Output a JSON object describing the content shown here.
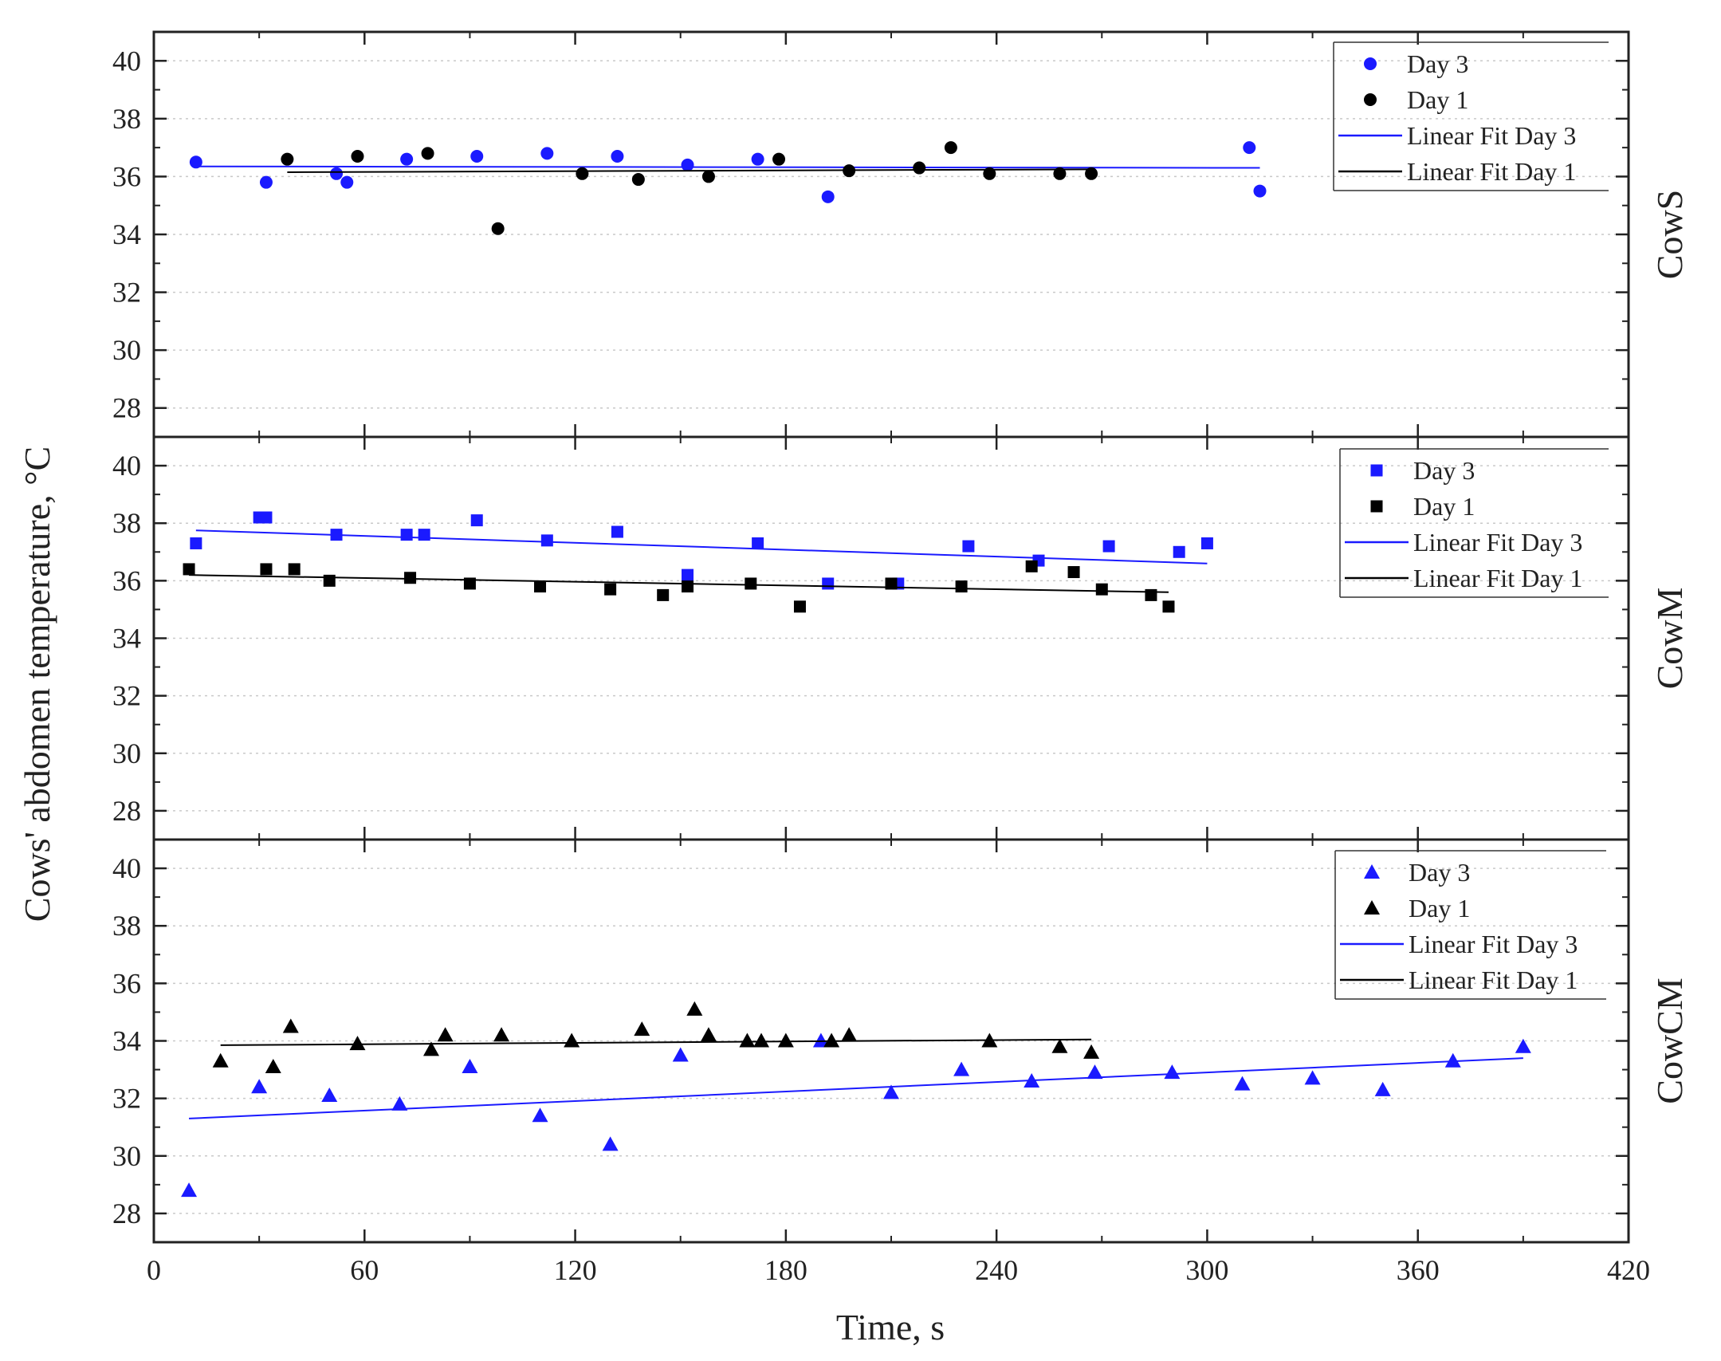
{
  "chart_data": {
    "type": "scatter",
    "xlabel": "Time, s",
    "ylabel": "Cows' abdomen temperature, °C",
    "xlim": [
      0,
      420
    ],
    "xticks": [
      0,
      60,
      120,
      180,
      240,
      300,
      360,
      420
    ],
    "ylim": [
      27,
      41
    ],
    "yticks": [
      28,
      30,
      32,
      34,
      36,
      38,
      40
    ],
    "grid": "horizontal dotted",
    "legend_position": "top-right",
    "colors": {
      "day3": "#1a1aff",
      "day1": "#000000"
    },
    "panels": [
      {
        "label": "CowS",
        "marker": "circle",
        "legend": [
          "Day 3",
          "Day 1",
          "Linear Fit  Day 3",
          "Linear Fit  Day 1"
        ],
        "series": [
          {
            "name": "Day 3",
            "points": [
              [
                12,
                36.5
              ],
              [
                32,
                35.8
              ],
              [
                52,
                36.1
              ],
              [
                55,
                35.8
              ],
              [
                72,
                36.6
              ],
              [
                92,
                36.7
              ],
              [
                112,
                36.8
              ],
              [
                132,
                36.7
              ],
              [
                152,
                36.4
              ],
              [
                172,
                36.6
              ],
              [
                192,
                35.3
              ],
              [
                312,
                37.0
              ],
              [
                315,
                35.5
              ]
            ],
            "fit": [
              [
                12,
                36.35
              ],
              [
                315,
                36.3
              ]
            ]
          },
          {
            "name": "Day 1",
            "points": [
              [
                38,
                36.6
              ],
              [
                58,
                36.7
              ],
              [
                78,
                36.8
              ],
              [
                98,
                34.2
              ],
              [
                122,
                36.1
              ],
              [
                138,
                35.9
              ],
              [
                158,
                36.0
              ],
              [
                178,
                36.6
              ],
              [
                198,
                36.2
              ],
              [
                218,
                36.3
              ],
              [
                227,
                37.0
              ],
              [
                238,
                36.1
              ],
              [
                258,
                36.1
              ],
              [
                267,
                36.1
              ]
            ],
            "fit": [
              [
                38,
                36.15
              ],
              [
                267,
                36.25
              ]
            ]
          }
        ]
      },
      {
        "label": "CowM",
        "marker": "square",
        "legend": [
          "Day 3",
          "Day 1",
          "Linear Fit Day 3",
          "Linear Fit Day 1"
        ],
        "series": [
          {
            "name": "Day 3",
            "points": [
              [
                12,
                37.3
              ],
              [
                30,
                38.2
              ],
              [
                32,
                38.2
              ],
              [
                52,
                37.6
              ],
              [
                72,
                37.6
              ],
              [
                77,
                37.6
              ],
              [
                92,
                38.1
              ],
              [
                112,
                37.4
              ],
              [
                132,
                37.7
              ],
              [
                152,
                36.2
              ],
              [
                172,
                37.3
              ],
              [
                192,
                35.9
              ],
              [
                212,
                35.9
              ],
              [
                232,
                37.2
              ],
              [
                252,
                36.7
              ],
              [
                272,
                37.2
              ],
              [
                292,
                37.0
              ],
              [
                300,
                37.3
              ]
            ],
            "fit": [
              [
                12,
                37.75
              ],
              [
                300,
                36.6
              ]
            ]
          },
          {
            "name": "Day 1",
            "points": [
              [
                10,
                36.4
              ],
              [
                32,
                36.4
              ],
              [
                40,
                36.4
              ],
              [
                50,
                36.0
              ],
              [
                73,
                36.1
              ],
              [
                90,
                35.9
              ],
              [
                110,
                35.8
              ],
              [
                130,
                35.7
              ],
              [
                145,
                35.5
              ],
              [
                152,
                35.8
              ],
              [
                170,
                35.9
              ],
              [
                184,
                35.1
              ],
              [
                210,
                35.9
              ],
              [
                230,
                35.8
              ],
              [
                250,
                36.5
              ],
              [
                262,
                36.3
              ],
              [
                270,
                35.7
              ],
              [
                284,
                35.5
              ],
              [
                289,
                35.1
              ]
            ],
            "fit": [
              [
                10,
                36.2
              ],
              [
                289,
                35.6
              ]
            ]
          }
        ]
      },
      {
        "label": "CowCM",
        "marker": "triangle",
        "legend": [
          "Day 3",
          "Day 1",
          "Linear Fit Day 3",
          "Linear Fit Day 1"
        ],
        "series": [
          {
            "name": "Day 3",
            "points": [
              [
                10,
                28.8
              ],
              [
                30,
                32.4
              ],
              [
                50,
                32.1
              ],
              [
                70,
                31.8
              ],
              [
                90,
                33.1
              ],
              [
                110,
                31.4
              ],
              [
                130,
                30.4
              ],
              [
                150,
                33.5
              ],
              [
                190,
                34.0
              ],
              [
                210,
                32.2
              ],
              [
                230,
                33.0
              ],
              [
                250,
                32.6
              ],
              [
                268,
                32.9
              ],
              [
                290,
                32.9
              ],
              [
                310,
                32.5
              ],
              [
                330,
                32.7
              ],
              [
                350,
                32.3
              ],
              [
                370,
                33.3
              ],
              [
                390,
                33.8
              ]
            ],
            "fit": [
              [
                10,
                31.3
              ],
              [
                390,
                33.4
              ]
            ]
          },
          {
            "name": "Day 1",
            "points": [
              [
                19,
                33.3
              ],
              [
                34,
                33.1
              ],
              [
                39,
                34.5
              ],
              [
                58,
                33.9
              ],
              [
                79,
                33.7
              ],
              [
                83,
                34.2
              ],
              [
                99,
                34.2
              ],
              [
                119,
                34.0
              ],
              [
                139,
                34.4
              ],
              [
                154,
                35.1
              ],
              [
                158,
                34.2
              ],
              [
                169,
                34.0
              ],
              [
                173,
                34.0
              ],
              [
                180,
                34.0
              ],
              [
                193,
                34.0
              ],
              [
                198,
                34.2
              ],
              [
                238,
                34.0
              ],
              [
                258,
                33.8
              ],
              [
                267,
                33.6
              ]
            ],
            "fit": [
              [
                19,
                33.85
              ],
              [
                267,
                34.05
              ]
            ]
          }
        ]
      }
    ]
  }
}
